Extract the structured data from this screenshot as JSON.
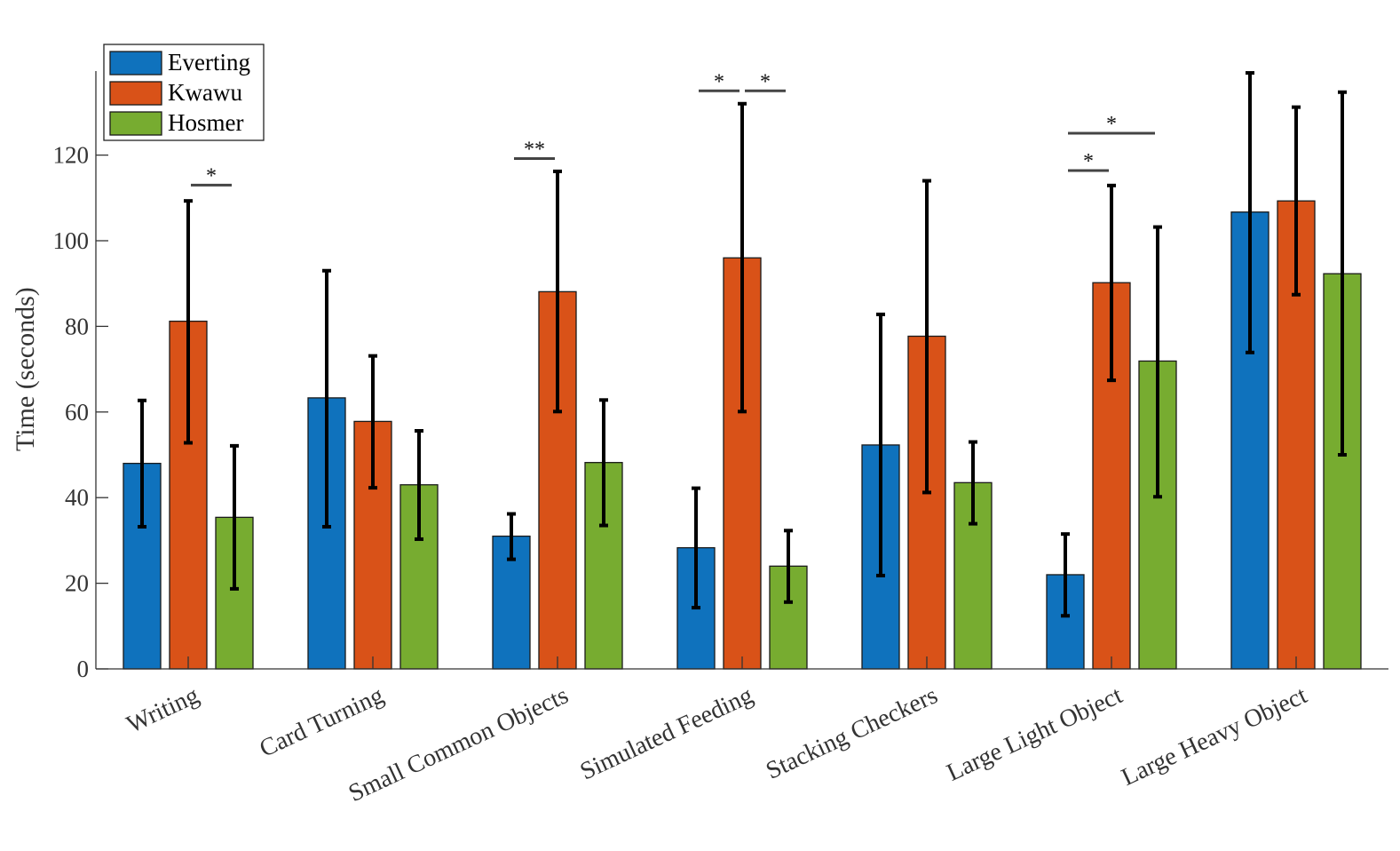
{
  "chart_data": {
    "type": "bar",
    "ylabel": "Time (seconds)",
    "ylim": [
      0,
      140
    ],
    "yticks": [
      0,
      20,
      40,
      60,
      80,
      100,
      120
    ],
    "grid": false,
    "legend_position": "top-left",
    "categories": [
      "Writing",
      "Card Turning",
      "Small Common Objects",
      "Simulated Feeding",
      "Stacking Checkers",
      "Large Light Object",
      "Large Heavy Object"
    ],
    "series": [
      {
        "name": "Everting",
        "color": "#0f72bd",
        "values": [
          48.0,
          63.3,
          31.0,
          28.3,
          52.3,
          22.0,
          106.7
        ],
        "err_low": [
          33.2,
          33.2,
          25.6,
          14.3,
          21.8,
          12.4,
          73.9
        ],
        "err_high": [
          62.7,
          93.0,
          36.2,
          42.2,
          82.8,
          31.5,
          139.2
        ]
      },
      {
        "name": "Kwawu",
        "color": "#d95218",
        "values": [
          81.2,
          57.8,
          88.1,
          96.0,
          77.7,
          90.2,
          109.3
        ],
        "err_low": [
          52.8,
          42.3,
          60.1,
          60.1,
          41.2,
          67.4,
          87.4
        ],
        "err_high": [
          109.3,
          73.1,
          116.2,
          132.0,
          114.0,
          112.9,
          131.2
        ]
      },
      {
        "name": "Hosmer",
        "color": "#77ac30",
        "values": [
          35.4,
          43.0,
          48.2,
          24.0,
          43.5,
          71.9,
          92.3
        ],
        "err_low": [
          18.7,
          30.3,
          33.5,
          15.6,
          33.9,
          40.2,
          50.0
        ],
        "err_high": [
          52.1,
          55.6,
          62.8,
          32.3,
          53.0,
          103.2,
          134.7
        ]
      }
    ],
    "significance": [
      {
        "category": 0,
        "from": 1,
        "to": 2,
        "y": 113.0,
        "label": "*"
      },
      {
        "category": 2,
        "from": 0,
        "to": 1,
        "y": 119.2,
        "label": "**"
      },
      {
        "category": 3,
        "from": 0,
        "to": 1,
        "y": 135.0,
        "label": "*"
      },
      {
        "category": 3,
        "from": 1,
        "to": 2,
        "y": 135.0,
        "label": "*"
      },
      {
        "category": 5,
        "from": 0,
        "to": 1,
        "y": 116.4,
        "label": "*"
      },
      {
        "category": 5,
        "from": 0,
        "to": 2,
        "y": 125.1,
        "label": "*"
      }
    ]
  }
}
